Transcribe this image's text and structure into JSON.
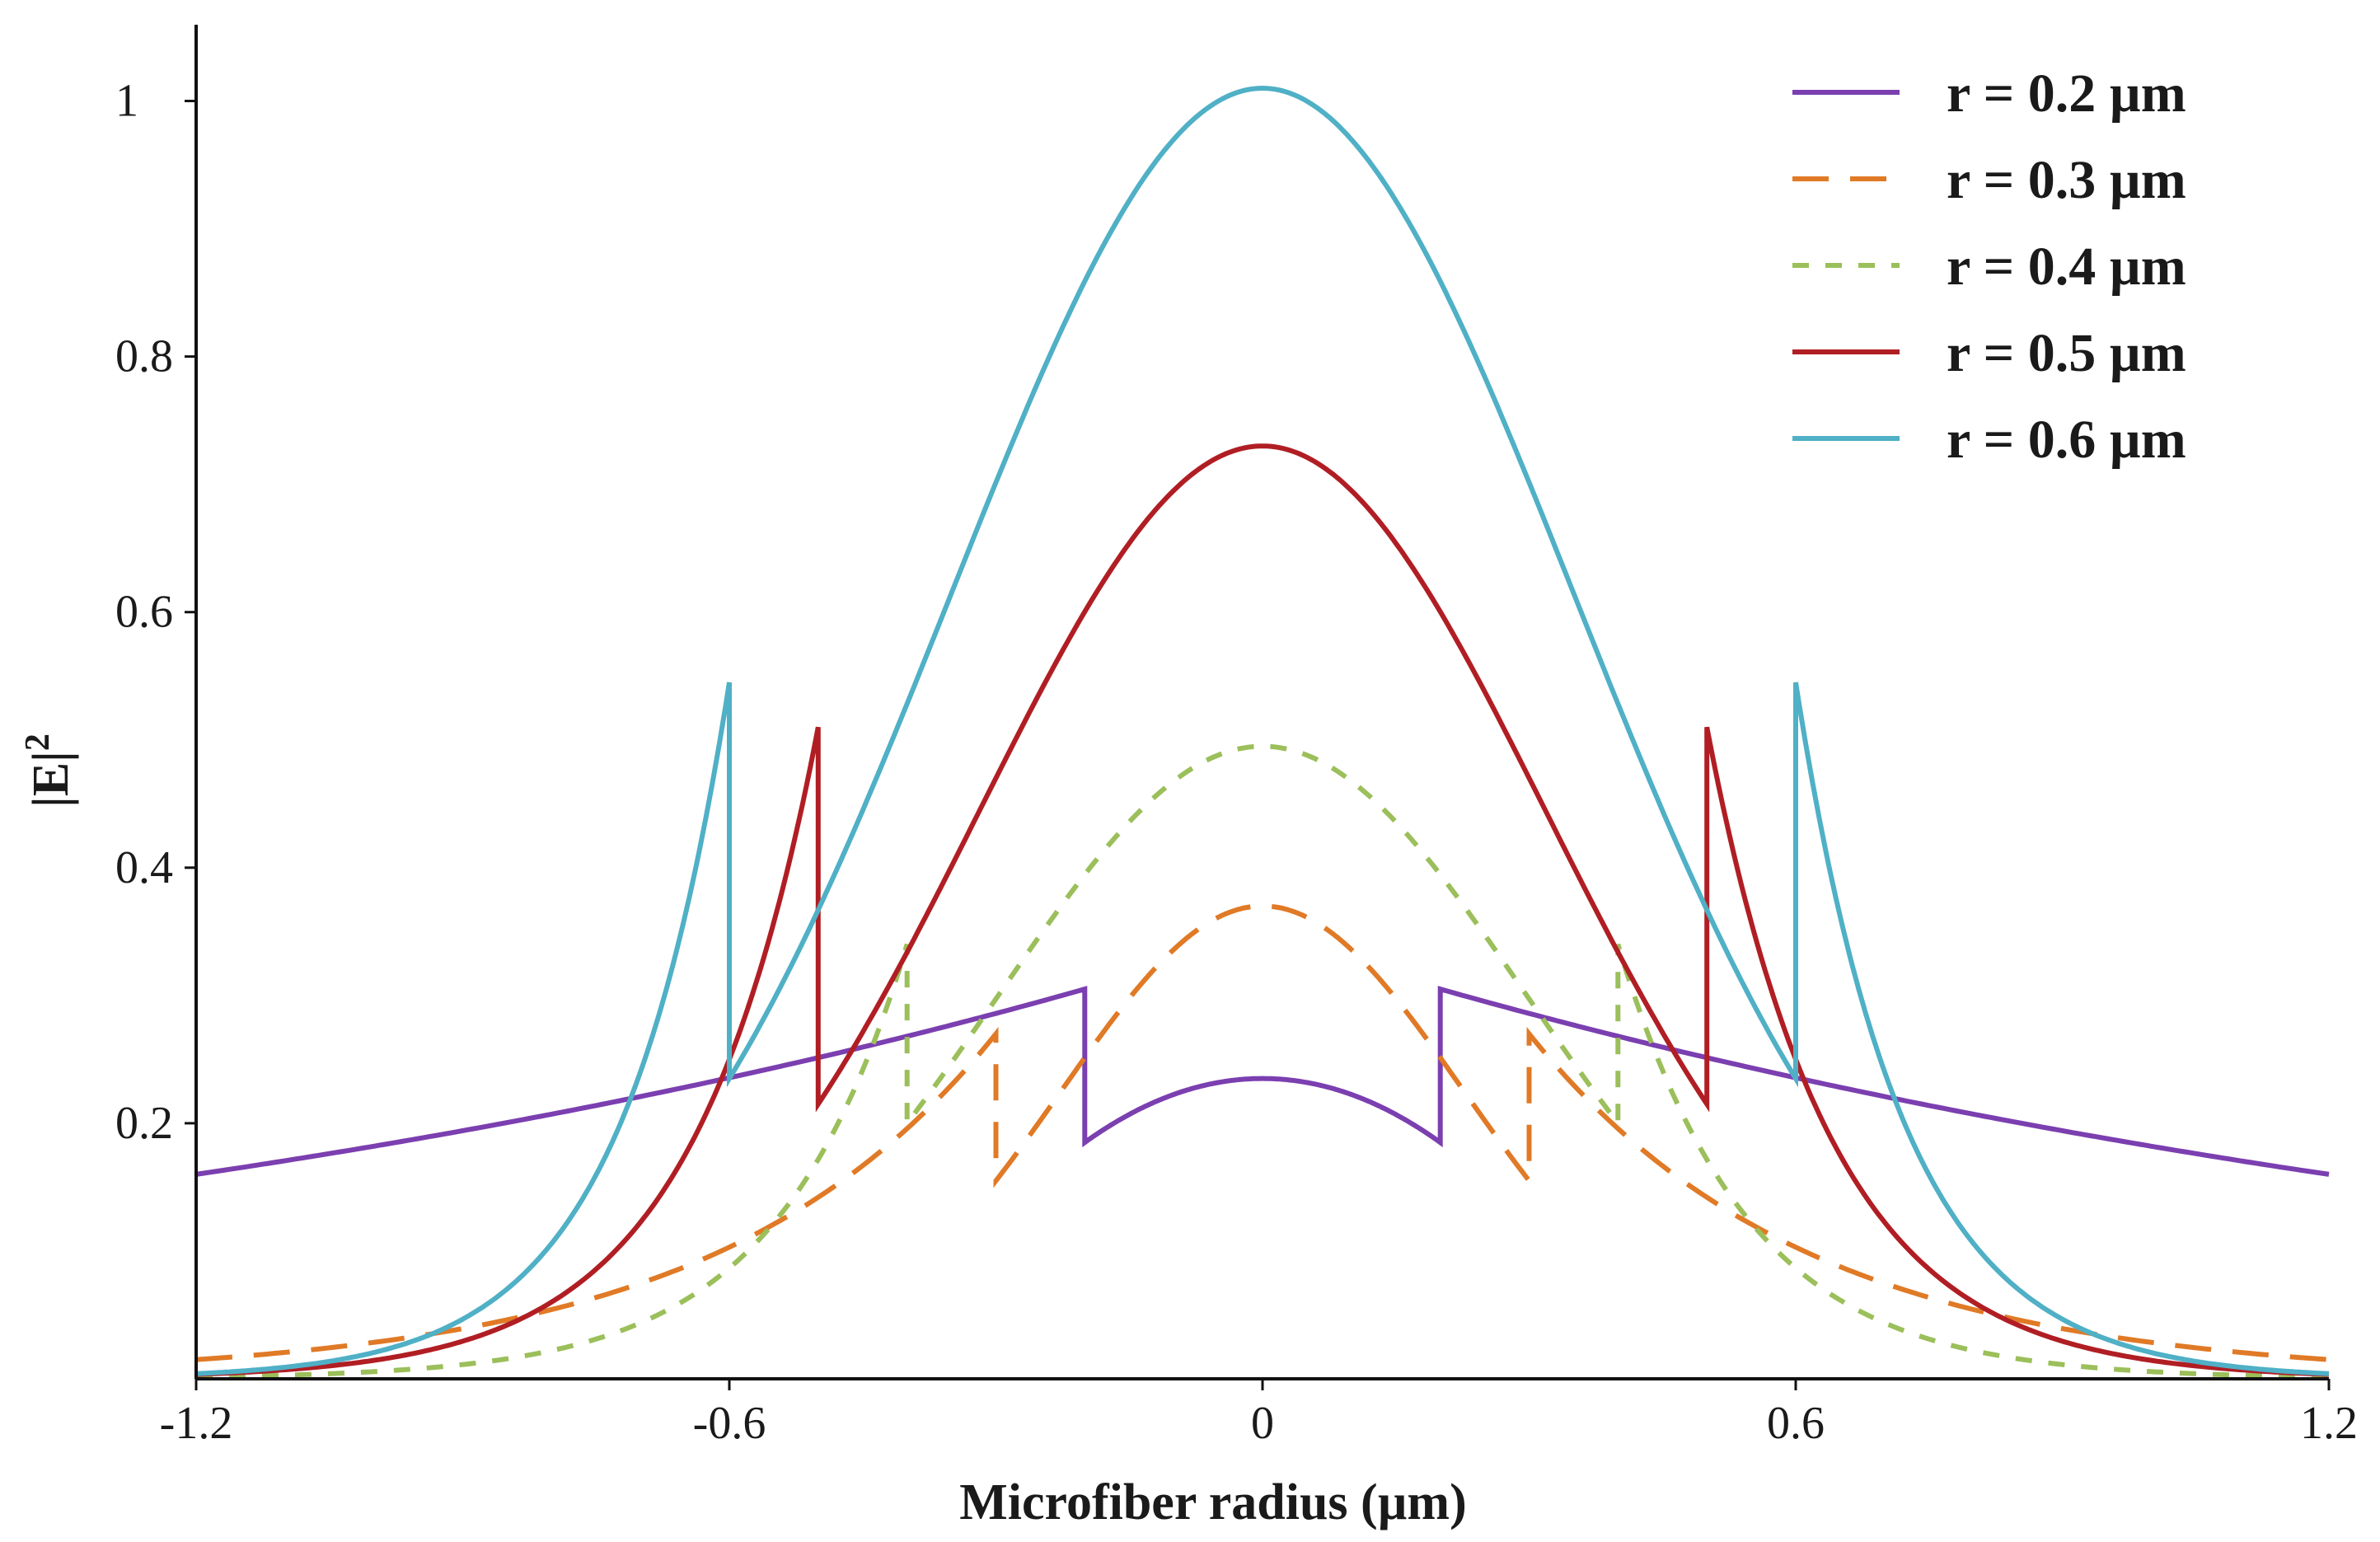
{
  "chart_data": {
    "type": "line",
    "title": "",
    "xlabel": "Microfiber radius (µm)",
    "ylabel": "|E|",
    "ylabel_superscript": "2",
    "xlim": [
      -1.2,
      1.2
    ],
    "ylim": [
      0.0,
      1.05
    ],
    "xticks": [
      {
        "value": -1.2,
        "label": "-1.2"
      },
      {
        "value": -0.6,
        "label": "-0.6"
      },
      {
        "value": 0,
        "label": "0"
      },
      {
        "value": 0.6,
        "label": "0.6"
      },
      {
        "value": 1.2,
        "label": "1.2"
      }
    ],
    "yticks": [
      {
        "value": 0.2,
        "label": "0.2"
      },
      {
        "value": 0.4,
        "label": "0.4"
      },
      {
        "value": 0.6,
        "label": "0.6"
      },
      {
        "value": 0.8,
        "label": "0.8"
      },
      {
        "value": 1,
        "label": "1"
      }
    ],
    "legend_position": "top-right",
    "series": [
      {
        "name": "r = 0.2 µm",
        "color": "#7b3fb0",
        "dash": "solid",
        "core_radius": 0.2,
        "core_center": 0.235,
        "core_edge": 0.185,
        "core_shape": "parabolic",
        "cladding_edge": 0.305,
        "cladding_far": 0.16,
        "cladding_far_x": 1.2,
        "cladding_shape": "exponential"
      },
      {
        "name": "r = 0.3 µm",
        "color": "#e07a26",
        "dash": "long",
        "core_radius": 0.3,
        "core_center": 0.37,
        "core_edge": 0.155,
        "core_shape": "gaussian",
        "cladding_edge": 0.27,
        "cladding_far": 0.015,
        "cladding_far_x": 1.2,
        "cladding_shape": "exponential"
      },
      {
        "name": "r = 0.4 µm",
        "color": "#9bbf5a",
        "dash": "short",
        "core_radius": 0.4,
        "core_center": 0.495,
        "core_edge": 0.2,
        "core_shape": "gaussian",
        "cladding_edge": 0.34,
        "cladding_far": 0.0,
        "cladding_far_x": 1.05,
        "cladding_shape": "exponential"
      },
      {
        "name": "r = 0.5 µm",
        "color": "#b01e24",
        "dash": "solid",
        "core_radius": 0.5,
        "core_center": 0.73,
        "core_edge": 0.215,
        "core_shape": "gaussian",
        "cladding_edge": 0.51,
        "cladding_far": 0.0,
        "cladding_far_x": 1.18,
        "cladding_shape": "exponential"
      },
      {
        "name": "r = 0.6 µm",
        "color": "#4fb0c6",
        "dash": "solid",
        "core_radius": 0.6,
        "core_center": 1.01,
        "core_edge": 0.235,
        "core_shape": "gaussian",
        "cladding_edge": 0.545,
        "cladding_far": 0.0,
        "cladding_far_x": 1.2,
        "cladding_shape": "exponential"
      }
    ]
  }
}
